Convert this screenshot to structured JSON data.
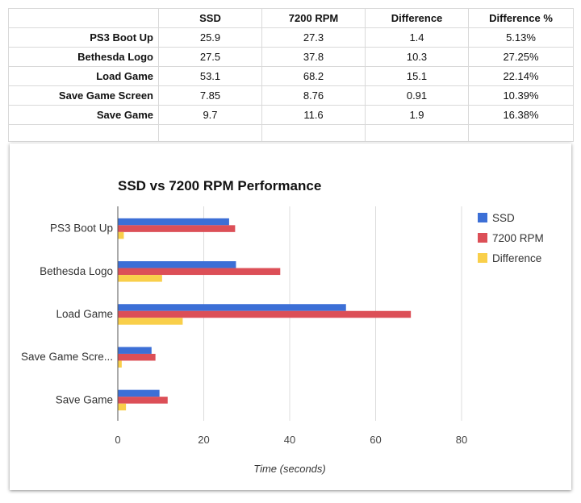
{
  "table": {
    "headers": [
      "",
      "SSD",
      "7200 RPM",
      "Difference",
      "Difference %"
    ],
    "rows": [
      [
        "PS3 Boot Up",
        "25.9",
        "27.3",
        "1.4",
        "5.13%"
      ],
      [
        "Bethesda Logo",
        "27.5",
        "37.8",
        "10.3",
        "27.25%"
      ],
      [
        "Load Game",
        "53.1",
        "68.2",
        "15.1",
        "22.14%"
      ],
      [
        "Save Game Screen",
        "7.85",
        "8.76",
        "0.91",
        "10.39%"
      ],
      [
        "Save Game",
        "9.7",
        "11.6",
        "1.9",
        "16.38%"
      ]
    ]
  },
  "chart_data": {
    "type": "bar",
    "orientation": "horizontal",
    "title": "SSD vs 7200 RPM Performance",
    "xlabel": "Time (seconds)",
    "ylabel": "",
    "categories": [
      "PS3 Boot Up",
      "Bethesda Logo",
      "Load Game",
      "Save Game Scre...",
      "Save Game"
    ],
    "series": [
      {
        "name": "SSD",
        "color": "#3c6fd6",
        "values": [
          25.9,
          27.5,
          53.1,
          7.85,
          9.7
        ]
      },
      {
        "name": "7200 RPM",
        "color": "#dc4f57",
        "values": [
          27.3,
          37.8,
          68.2,
          8.76,
          11.6
        ]
      },
      {
        "name": "Difference",
        "color": "#f9cf4a",
        "values": [
          1.4,
          10.3,
          15.1,
          0.91,
          1.9
        ]
      }
    ],
    "xlim": [
      0,
      80
    ],
    "xticks": [
      0,
      20,
      40,
      60,
      80
    ],
    "grid": true,
    "legend_position": "right"
  }
}
